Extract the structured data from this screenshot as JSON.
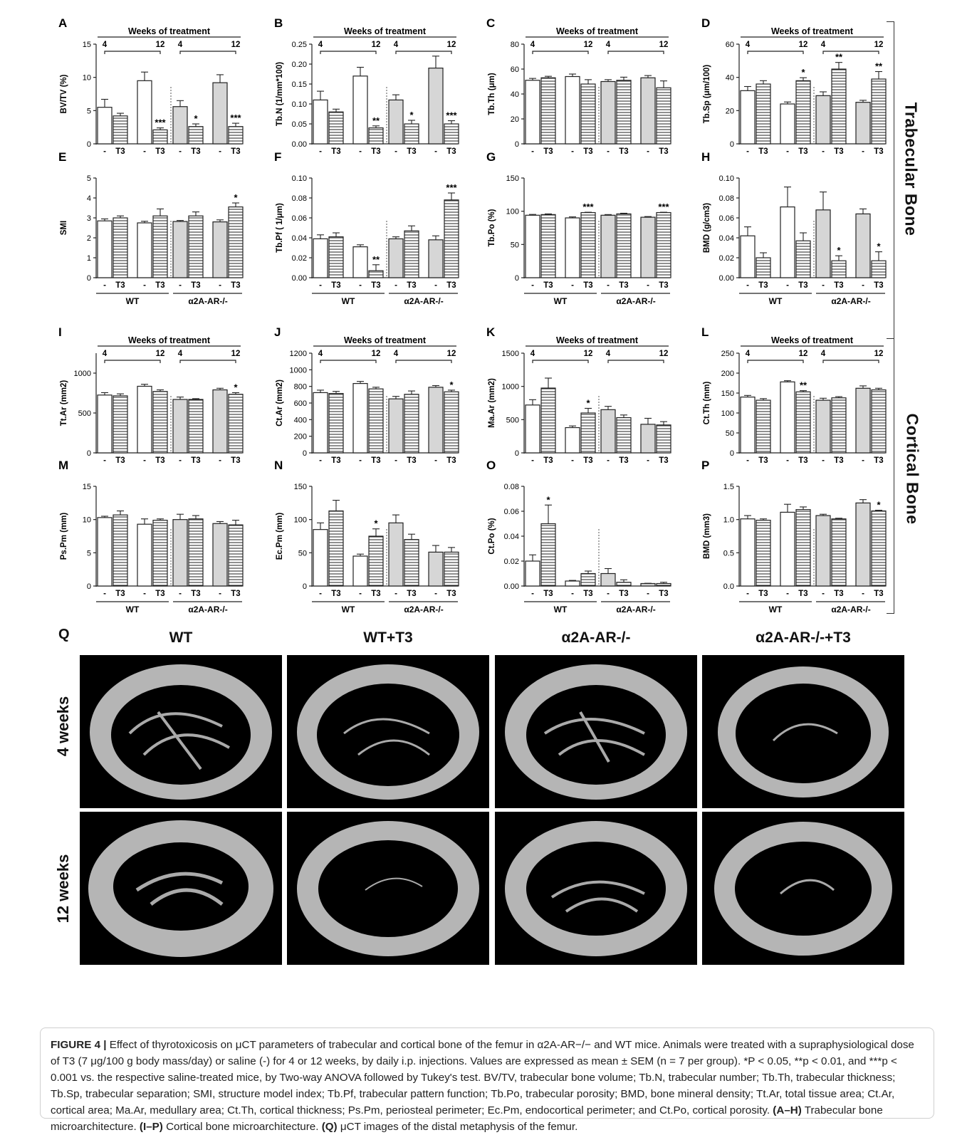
{
  "figure": {
    "side_labels": {
      "trabecular": "Trabecular Bone",
      "cortical": "Cortical Bone"
    },
    "weeks_header": "Weeks of treatment",
    "weeks": [
      "4",
      "12",
      "4",
      "12"
    ],
    "bar_labels": [
      "-",
      "T3",
      "-",
      "T3",
      "-",
      "T3",
      "-",
      "T3"
    ],
    "group_labels": {
      "wt": "WT",
      "ko": "α2A-AR-/-"
    }
  },
  "chart_data": [
    {
      "panel": "A",
      "type": "bar",
      "ylabel": "BV/TV  (%)",
      "ylim": [
        0,
        15
      ],
      "ticks": [
        "0",
        "5",
        "10",
        "15"
      ],
      "tickvals": [
        0,
        5,
        10,
        15
      ],
      "values": [
        5.5,
        4.2,
        9.5,
        2.1,
        5.6,
        2.6,
        9.2,
        2.6
      ],
      "errors": [
        1.2,
        0.4,
        1.3,
        0.3,
        0.9,
        0.4,
        1.2,
        0.5
      ],
      "stars": [
        "",
        "",
        "",
        "***",
        "",
        "*",
        "",
        "***"
      ],
      "header": true,
      "group_footer": false
    },
    {
      "panel": "B",
      "type": "bar",
      "ylabel": "Tb.N (1/mm*100)",
      "ylim": [
        0,
        0.25
      ],
      "ticks": [
        "0.00",
        "0.05",
        "0.10",
        "0.15",
        "0.20",
        "0.25"
      ],
      "tickvals": [
        0,
        0.05,
        0.1,
        0.15,
        0.2,
        0.25
      ],
      "values": [
        0.11,
        0.08,
        0.17,
        0.04,
        0.11,
        0.05,
        0.19,
        0.05
      ],
      "errors": [
        0.022,
        0.007,
        0.022,
        0.005,
        0.013,
        0.009,
        0.03,
        0.008
      ],
      "stars": [
        "",
        "",
        "",
        "**",
        "",
        "*",
        "",
        "***"
      ],
      "header": true,
      "group_footer": false
    },
    {
      "panel": "C",
      "type": "bar",
      "ylabel": "Tb.Th  (μm)",
      "ylim": [
        0,
        80
      ],
      "ticks": [
        "0",
        "20",
        "40",
        "60",
        "80"
      ],
      "tickvals": [
        0,
        20,
        40,
        60,
        80
      ],
      "values": [
        51,
        53,
        54,
        48,
        50,
        51,
        53,
        45
      ],
      "errors": [
        1.5,
        1.2,
        2.0,
        3.5,
        1.5,
        2.5,
        1.8,
        5.5
      ],
      "stars": [
        "",
        "",
        "",
        "",
        "",
        "",
        "",
        ""
      ],
      "header": true,
      "group_footer": false
    },
    {
      "panel": "D",
      "type": "bar",
      "ylabel": "Tb.Sp (μm/100)",
      "ylim": [
        0,
        60
      ],
      "ticks": [
        "0",
        "20",
        "40",
        "60"
      ],
      "tickvals": [
        0,
        20,
        40,
        60
      ],
      "values": [
        32,
        36,
        24,
        38,
        29,
        45,
        25,
        39
      ],
      "errors": [
        2.5,
        2.0,
        1.2,
        1.8,
        2.3,
        4.0,
        1.2,
        4.5
      ],
      "stars": [
        "",
        "",
        "",
        "*",
        "",
        "**",
        "",
        "**"
      ],
      "header": true,
      "group_footer": false
    },
    {
      "panel": "E",
      "type": "bar",
      "ylabel": "SMI",
      "ylim": [
        0,
        5
      ],
      "ticks": [
        "0",
        "1",
        "2",
        "3",
        "4",
        "5"
      ],
      "tickvals": [
        0,
        1,
        2,
        3,
        4,
        5
      ],
      "values": [
        2.85,
        3.0,
        2.75,
        3.1,
        2.82,
        3.1,
        2.8,
        3.55
      ],
      "errors": [
        0.1,
        0.1,
        0.08,
        0.35,
        0.05,
        0.2,
        0.1,
        0.2
      ],
      "stars": [
        "",
        "",
        "",
        "",
        "",
        "",
        "",
        "*"
      ],
      "header": false,
      "group_footer": true
    },
    {
      "panel": "F",
      "type": "bar",
      "ylabel": "Tb.Pf ( 1/μm)",
      "ylim": [
        0,
        0.1
      ],
      "ticks": [
        "0.00",
        "0.02",
        "0.04",
        "0.06",
        "0.08",
        "0.10"
      ],
      "tickvals": [
        0,
        0.02,
        0.04,
        0.06,
        0.08,
        0.1
      ],
      "values": [
        0.039,
        0.041,
        0.031,
        0.007,
        0.039,
        0.047,
        0.038,
        0.078
      ],
      "errors": [
        0.004,
        0.004,
        0.002,
        0.006,
        0.002,
        0.005,
        0.004,
        0.007
      ],
      "stars": [
        "",
        "",
        "",
        "**",
        "",
        "",
        "",
        "***"
      ],
      "header": false,
      "group_footer": true
    },
    {
      "panel": "G",
      "type": "bar",
      "ylabel": "Tb.Po (%)",
      "ylim": [
        0,
        150
      ],
      "ticks": [
        "0",
        "50",
        "100",
        "150"
      ],
      "tickvals": [
        0,
        50,
        100,
        150
      ],
      "values": [
        94,
        95,
        90,
        98,
        94,
        96,
        91,
        98
      ],
      "errors": [
        1.2,
        1.0,
        1.5,
        0.5,
        1.0,
        1.0,
        1.0,
        0.5
      ],
      "stars": [
        "",
        "",
        "",
        "***",
        "",
        "",
        "",
        "***"
      ],
      "header": false,
      "group_footer": true
    },
    {
      "panel": "H",
      "type": "bar",
      "ylabel": "BMD (g/cm3)",
      "ylim": [
        0,
        0.1
      ],
      "ticks": [
        "0.00",
        "0.02",
        "0.04",
        "0.06",
        "0.08",
        "0.10"
      ],
      "tickvals": [
        0,
        0.02,
        0.04,
        0.06,
        0.08,
        0.1
      ],
      "values": [
        0.042,
        0.02,
        0.071,
        0.037,
        0.068,
        0.017,
        0.064,
        0.017
      ],
      "errors": [
        0.009,
        0.005,
        0.02,
        0.008,
        0.018,
        0.005,
        0.005,
        0.009
      ],
      "stars": [
        "",
        "",
        "",
        "",
        "",
        "*",
        "",
        "*"
      ],
      "header": false,
      "group_footer": true
    },
    {
      "panel": "I",
      "type": "bar",
      "ylabel": "Tt.Ar (mm2)",
      "ylim": [
        0,
        1250
      ],
      "ticks": [
        "0",
        "500",
        "1000"
      ],
      "tickvals": [
        0,
        500,
        1000
      ],
      "values": [
        725,
        715,
        835,
        770,
        670,
        670,
        790,
        735
      ],
      "errors": [
        30,
        25,
        25,
        20,
        30,
        10,
        20,
        20
      ],
      "stars": [
        "",
        "",
        "",
        "",
        "",
        "",
        "",
        "*"
      ],
      "header": true,
      "group_footer": false
    },
    {
      "panel": "J",
      "type": "bar",
      "ylabel": "Ct.Ar (mm2)",
      "ylim": [
        0,
        1200
      ],
      "ticks": [
        "0",
        "200",
        "400",
        "600",
        "800",
        "1000",
        "1200"
      ],
      "tickvals": [
        0,
        200,
        400,
        600,
        800,
        1000,
        1200
      ],
      "values": [
        725,
        715,
        835,
        770,
        650,
        705,
        790,
        735
      ],
      "errors": [
        30,
        25,
        25,
        20,
        30,
        40,
        20,
        20
      ],
      "stars": [
        "",
        "",
        "",
        "",
        "",
        "",
        "",
        "*"
      ],
      "header": true,
      "group_footer": false
    },
    {
      "panel": "K",
      "type": "bar",
      "ylabel": "Ma.Ar (mm2)",
      "ylim": [
        0,
        1500
      ],
      "ticks": [
        "0",
        "500",
        "1000",
        "1500"
      ],
      "tickvals": [
        0,
        500,
        1000,
        1500
      ],
      "values": [
        720,
        975,
        380,
        600,
        650,
        530,
        430,
        420
      ],
      "errors": [
        80,
        150,
        25,
        70,
        50,
        40,
        90,
        50
      ],
      "stars": [
        "",
        "",
        "",
        "*",
        "",
        "",
        "",
        ""
      ],
      "header": true,
      "group_footer": false
    },
    {
      "panel": "L",
      "type": "bar",
      "ylabel": "Ct.Th (mm)",
      "ylim": [
        0,
        250
      ],
      "ticks": [
        "0",
        "50",
        "100",
        "150",
        "200",
        "250"
      ],
      "tickvals": [
        0,
        50,
        100,
        150,
        200,
        250
      ],
      "values": [
        140,
        132,
        178,
        153,
        132,
        138,
        162,
        158
      ],
      "errors": [
        4,
        4,
        3,
        3,
        5,
        3,
        6,
        4
      ],
      "stars": [
        "",
        "",
        "",
        "**",
        "",
        "",
        "",
        ""
      ],
      "header": true,
      "group_footer": false
    },
    {
      "panel": "M",
      "type": "bar",
      "ylabel": "Ps.Pm (mm)",
      "ylim": [
        0,
        15
      ],
      "ticks": [
        "0",
        "5",
        "10",
        "15"
      ],
      "tickvals": [
        0,
        5,
        10,
        15
      ],
      "values": [
        10.3,
        10.7,
        9.3,
        9.9,
        10.0,
        10.1,
        9.4,
        9.2
      ],
      "errors": [
        0.2,
        0.6,
        0.8,
        0.2,
        0.8,
        0.5,
        0.3,
        0.7
      ],
      "stars": [
        "",
        "",
        "",
        "",
        "",
        "",
        "",
        ""
      ],
      "header": false,
      "group_footer": true
    },
    {
      "panel": "N",
      "type": "bar",
      "ylabel": "Ec.Pm (mm)",
      "ylim": [
        0,
        150
      ],
      "ticks": [
        "0",
        "50",
        "100",
        "150"
      ],
      "tickvals": [
        0,
        50,
        100,
        150
      ],
      "values": [
        85,
        113,
        45,
        75,
        95,
        70,
        51,
        51
      ],
      "errors": [
        10,
        16,
        3,
        11,
        12,
        8,
        10,
        7
      ],
      "stars": [
        "",
        "",
        "",
        "*",
        "",
        "",
        "",
        ""
      ],
      "header": false,
      "group_footer": true
    },
    {
      "panel": "O",
      "type": "bar",
      "ylabel": "Ct.Po (%)",
      "ylim": [
        0,
        0.08
      ],
      "ticks": [
        "0.00",
        "0.02",
        "0.04",
        "0.06",
        "0.08"
      ],
      "tickvals": [
        0,
        0.02,
        0.04,
        0.06,
        0.08
      ],
      "values": [
        0.02,
        0.05,
        0.004,
        0.01,
        0.01,
        0.003,
        0.002,
        0.002
      ],
      "errors": [
        0.005,
        0.015,
        0.0005,
        0.002,
        0.004,
        0.002,
        0.0002,
        0.001
      ],
      "stars": [
        "",
        "*",
        "",
        "",
        "",
        "",
        "",
        ""
      ],
      "header": false,
      "group_footer": true
    },
    {
      "panel": "P",
      "type": "bar",
      "ylabel": "BMD (mm3)",
      "ylim": [
        0,
        1.5
      ],
      "ticks": [
        "0.0",
        "0.5",
        "1.0",
        "1.5"
      ],
      "tickvals": [
        0,
        0.5,
        1.0,
        1.5
      ],
      "values": [
        1.01,
        0.99,
        1.11,
        1.15,
        1.06,
        1.01,
        1.25,
        1.13
      ],
      "errors": [
        0.05,
        0.02,
        0.12,
        0.04,
        0.02,
        0.01,
        0.05,
        0.01
      ],
      "stars": [
        "",
        "",
        "",
        "",
        "",
        "",
        "",
        "*"
      ],
      "header": false,
      "group_footer": true
    }
  ],
  "panel_q": {
    "letter": "Q",
    "columns": [
      "WT",
      "WT+T3",
      "α2A-AR-/-",
      "α2A-AR-/-+T3"
    ],
    "rows": [
      "4 weeks",
      "12 weeks"
    ]
  },
  "caption": {
    "label": "FIGURE 4 |",
    "text_1": " Effect of thyrotoxicosis on μCT parameters of trabecular and cortical bone of the femur in α2A-AR−/− and WT mice. Animals were treated with a supraphysiological dose of T3 (7 μg/100 g body mass/day) or saline (-) for 4 or 12 weeks, by daily i.p. injections. Values are expressed as mean ± SEM (n = 7 per group). *P < 0.05, **p < 0.01, and ***p < 0.001 vs. the respective saline-treated mice, by Two-way ANOVA followed by Tukey's test. BV/TV, trabecular bone volume; Tb.N, trabecular number; Tb.Th, trabecular thickness; Tb.Sp, trabecular separation; SMI, structure model index; Tb.Pf, trabecular pattern function; Tb.Po, trabecular porosity; BMD, bone mineral density; Tt.Ar, total tissue area; Ct.Ar, cortical area; Ma.Ar, medullary area; Ct.Th, cortical thickness; Ps.Pm, periosteal perimeter; Ec.Pm, endocortical perimeter; and Ct.Po, cortical porosity. ",
    "bold_1": "(A–H)",
    "text_2": " Trabecular bone microarchitecture. ",
    "bold_2": "(I–P)",
    "text_3": " Cortical bone microarchitecture. ",
    "bold_3": "(Q)",
    "text_4": " μCT images of the distal metaphysis of the femur."
  }
}
